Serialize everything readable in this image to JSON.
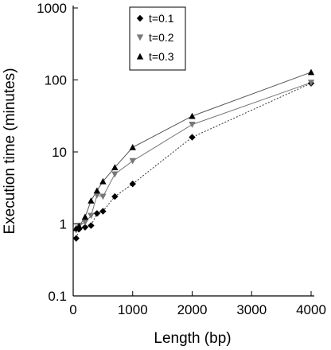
{
  "chart_data": {
    "type": "line",
    "xlabel": "Length (bp)",
    "ylabel": "Execution time (minutes)",
    "xlim": [
      0,
      4000
    ],
    "ylim": [
      0.1,
      1000
    ],
    "yscale": "log",
    "grid": false,
    "legend_position": "top-left",
    "x_ticks": [
      0,
      1000,
      2000,
      3000,
      4000
    ],
    "x_tick_labels": [
      "0",
      "1000",
      "2000",
      "3000",
      "4000"
    ],
    "y_ticks": [
      0.1,
      1,
      10,
      100,
      1000
    ],
    "y_tick_labels": [
      "0.1",
      "1",
      "10",
      "100",
      "1000"
    ],
    "series": [
      {
        "name": "t=0.1",
        "marker": "diamond",
        "color": "#000000",
        "line_color": "#333333",
        "line_style": "dotted",
        "x": [
          50,
          100,
          200,
          300,
          400,
          500,
          700,
          1000,
          2000,
          4000
        ],
        "y": [
          0.63,
          0.85,
          0.9,
          0.95,
          1.4,
          1.5,
          2.4,
          3.6,
          16,
          90
        ]
      },
      {
        "name": "t=0.2",
        "marker": "triangle-down",
        "color": "#777777",
        "line_color": "#777777",
        "line_style": "solid",
        "x": [
          50,
          100,
          200,
          300,
          400,
          500,
          700,
          1000,
          2000,
          4000
        ],
        "y": [
          0.82,
          0.95,
          1.05,
          1.3,
          2.5,
          2.4,
          4.9,
          7.5,
          24,
          92
        ]
      },
      {
        "name": "t=0.3",
        "marker": "triangle-up",
        "color": "#000000",
        "line_color": "#555555",
        "line_style": "solid",
        "x": [
          50,
          100,
          200,
          300,
          400,
          500,
          700,
          1000,
          2000,
          4000
        ],
        "y": [
          0.87,
          0.93,
          1.25,
          2.1,
          2.9,
          3.9,
          6.1,
          11.6,
          31.5,
          128
        ]
      }
    ]
  }
}
